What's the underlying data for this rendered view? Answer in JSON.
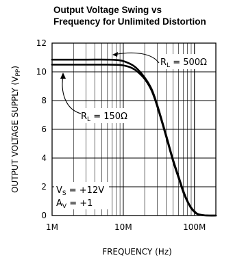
{
  "chart_data": {
    "type": "line",
    "title": "Output Voltage Swing vs Frequency for Unlimited Distortion",
    "title_lines": [
      "Output Voltage Swing vs",
      "Frequency for Unlimited Distortion"
    ],
    "xlabel": "FREQUENCY (Hz)",
    "ylabel": "OUTPUT VOLTAGE SUPPLY (V",
    "ylabel_sub": "PP",
    "ylabel_end": ")",
    "x_scale": "log",
    "xlim": [
      1000000,
      200000000
    ],
    "ylim": [
      0,
      12
    ],
    "x_ticks": [
      1000000,
      10000000,
      100000000
    ],
    "x_tick_labels": [
      "1M",
      "10M",
      "100M"
    ],
    "y_ticks": [
      0,
      2,
      4,
      6,
      8,
      10,
      12
    ],
    "y_tick_labels": [
      "0",
      "2",
      "4",
      "6",
      "8",
      "10",
      "12"
    ],
    "grid": true,
    "series": [
      {
        "name": "RL = 500Ω",
        "x": [
          1000000,
          3000000,
          6000000,
          9000000,
          12000000,
          15000000,
          20000000,
          25000000,
          30000000,
          40000000,
          50000000,
          60000000,
          70000000,
          80000000,
          90000000,
          100000000,
          110000000,
          130000000,
          160000000,
          200000000
        ],
        "y": [
          10.85,
          10.85,
          10.85,
          10.8,
          10.6,
          10.3,
          9.6,
          8.8,
          7.7,
          5.6,
          3.9,
          2.7,
          1.7,
          1.0,
          0.55,
          0.3,
          0.12,
          0.03,
          0.0,
          0.0
        ]
      },
      {
        "name": "RL = 150Ω",
        "x": [
          1000000,
          3000000,
          6000000,
          9000000,
          12000000,
          15000000,
          20000000,
          25000000,
          30000000,
          40000000,
          50000000,
          60000000,
          70000000,
          80000000,
          90000000,
          100000000,
          110000000,
          130000000,
          160000000,
          200000000
        ],
        "y": [
          10.5,
          10.5,
          10.5,
          10.48,
          10.35,
          10.1,
          9.5,
          8.7,
          7.6,
          5.5,
          3.8,
          2.6,
          1.6,
          0.95,
          0.5,
          0.25,
          0.1,
          0.02,
          0.0,
          0.0
        ]
      }
    ],
    "annotations": {
      "rl500": {
        "main": "R",
        "sub": "L",
        "rest": " = 500Ω"
      },
      "rl150": {
        "main": "R",
        "sub": "L",
        "rest": " = 150Ω"
      },
      "vs": {
        "main": "V",
        "sub": "S",
        "rest": " = +12V"
      },
      "av": {
        "main": "A",
        "sub": "V",
        "rest": " = +1"
      }
    }
  }
}
